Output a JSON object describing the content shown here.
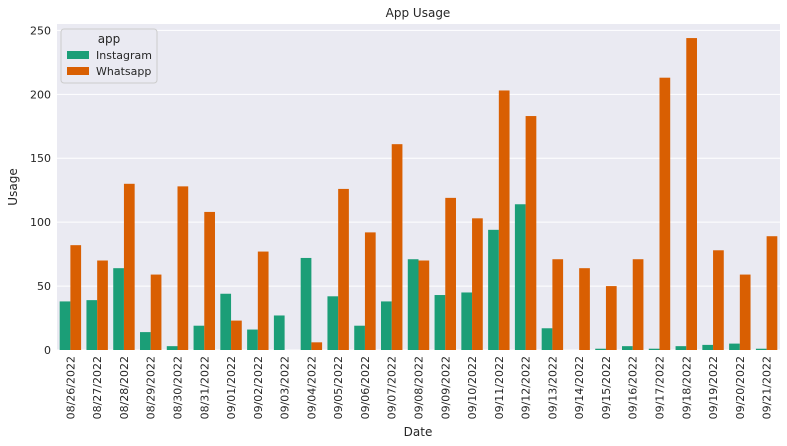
{
  "chart_data": {
    "type": "bar",
    "title": "App Usage",
    "xlabel": "Date",
    "ylabel": "Usage",
    "ylim": [
      0,
      255
    ],
    "yticks": [
      0,
      50,
      100,
      150,
      200,
      250
    ],
    "grid": true,
    "legend_title": "app",
    "legend_position": "top-left",
    "categories": [
      "08/26/2022",
      "08/27/2022",
      "08/28/2022",
      "08/29/2022",
      "08/30/2022",
      "08/31/2022",
      "09/01/2022",
      "09/02/2022",
      "09/03/2022",
      "09/04/2022",
      "09/05/2022",
      "09/06/2022",
      "09/07/2022",
      "09/08/2022",
      "09/09/2022",
      "09/10/2022",
      "09/11/2022",
      "09/12/2022",
      "09/13/2022",
      "09/14/2022",
      "09/15/2022",
      "09/16/2022",
      "09/17/2022",
      "09/18/2022",
      "09/19/2022",
      "09/20/2022",
      "09/21/2022"
    ],
    "series": [
      {
        "name": "Instagram",
        "color": "#1b9e77",
        "values": [
          38,
          39,
          64,
          14,
          3,
          19,
          44,
          16,
          27,
          72,
          42,
          19,
          38,
          71,
          43,
          45,
          94,
          114,
          17,
          null,
          1,
          3,
          1,
          3,
          4,
          5,
          1
        ]
      },
      {
        "name": "Whatsapp",
        "color": "#d95f02",
        "values": [
          82,
          70,
          130,
          59,
          128,
          108,
          23,
          77,
          null,
          6,
          126,
          92,
          161,
          70,
          119,
          103,
          203,
          183,
          71,
          64,
          50,
          71,
          213,
          244,
          78,
          59,
          89
        ]
      }
    ]
  }
}
